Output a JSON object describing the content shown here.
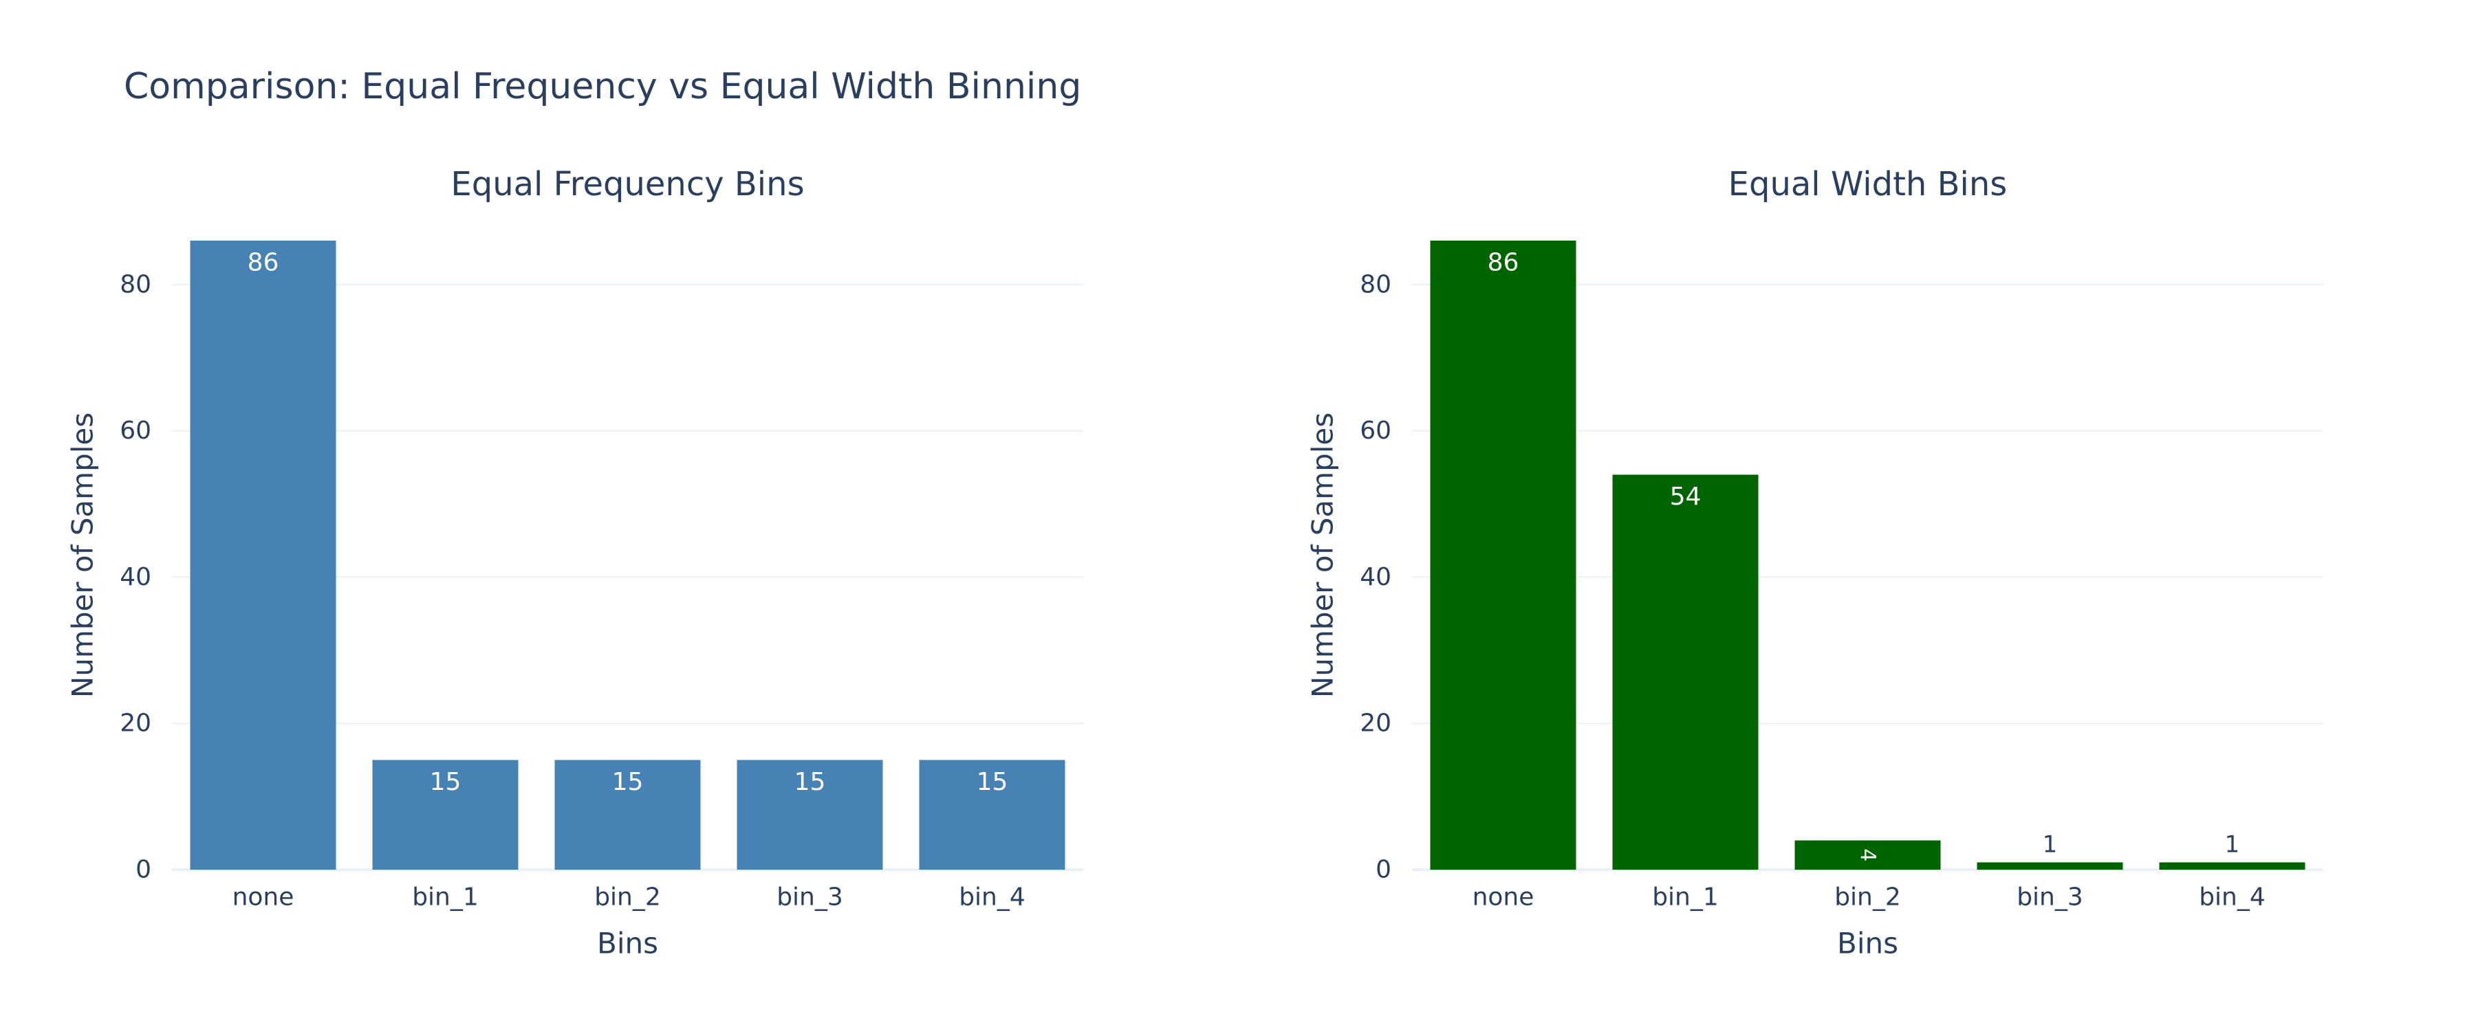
{
  "title": "Comparison: Equal Frequency vs Equal Width Binning",
  "chart_data": [
    {
      "type": "bar",
      "title": "Equal Frequency Bins",
      "xlabel": "Bins",
      "ylabel": "Number of Samples",
      "categories": [
        "none",
        "bin_1",
        "bin_2",
        "bin_3",
        "bin_4"
      ],
      "values": [
        86,
        15,
        15,
        15,
        15
      ],
      "ylim": [
        0,
        86
      ],
      "yticks": [
        0,
        20,
        40,
        60,
        80
      ],
      "color": "#4682b4",
      "grid": true
    },
    {
      "type": "bar",
      "title": "Equal Width Bins",
      "xlabel": "Bins",
      "ylabel": "Number of Samples",
      "categories": [
        "none",
        "bin_1",
        "bin_2",
        "bin_3",
        "bin_4"
      ],
      "values": [
        86,
        54,
        4,
        1,
        1
      ],
      "ylim": [
        0,
        86
      ],
      "yticks": [
        0,
        20,
        40,
        60,
        80
      ],
      "color": "#006400",
      "grid": true
    }
  ]
}
